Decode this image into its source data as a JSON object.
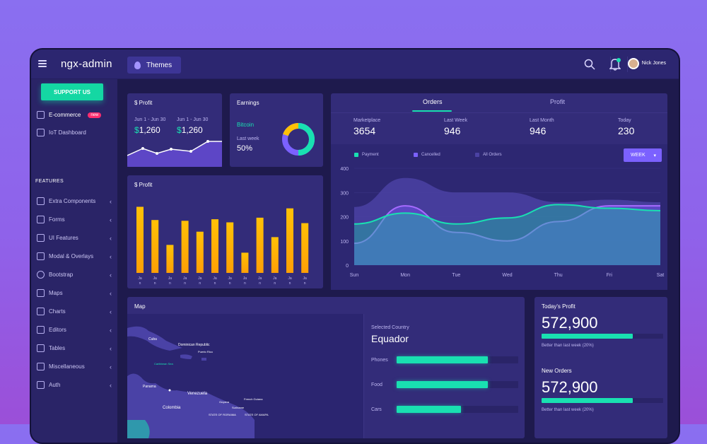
{
  "header": {
    "app_name": "ngx-admin",
    "themes_label": "Themes",
    "user_name": "Nick Jones",
    "icons": [
      "menu-icon",
      "drop-icon",
      "search-icon",
      "bell-icon"
    ]
  },
  "sidebar": {
    "support_label": "SUPPORT US",
    "features_label": "FEATURES",
    "new_badge": "new",
    "top_items": [
      {
        "label": "E-commerce",
        "icon": "shopping-cart-icon"
      },
      {
        "label": "IoT Dashboard",
        "icon": "home-icon"
      }
    ],
    "items": [
      {
        "label": "Extra Components",
        "icon": "star-icon"
      },
      {
        "label": "Forms",
        "icon": "edit-icon"
      },
      {
        "label": "UI Features",
        "icon": "grid-icon"
      },
      {
        "label": "Modal & Overlays",
        "icon": "browser-icon"
      },
      {
        "label": "Bootstrap",
        "icon": "gear-icon"
      },
      {
        "label": "Maps",
        "icon": "map-icon"
      },
      {
        "label": "Charts",
        "icon": "chart-icon"
      },
      {
        "label": "Editors",
        "icon": "text-icon"
      },
      {
        "label": "Tables",
        "icon": "table-icon"
      },
      {
        "label": "Miscellaneous",
        "icon": "shuffle-icon"
      },
      {
        "label": "Auth",
        "icon": "lock-icon"
      }
    ]
  },
  "profit_card": {
    "title": "$ Profit",
    "periods": [
      {
        "label": "Jun 1 - Jun 30",
        "currency": "$",
        "value": "1,260"
      },
      {
        "label": "Jun 1 - Jun 30",
        "currency": "$",
        "value": "1,260"
      }
    ]
  },
  "earnings_card": {
    "title": "Earnings",
    "coin": "Bitcoin",
    "last_week_label": "Last week",
    "percent": "50%"
  },
  "profit_bar_card": {
    "title": "$ Profit",
    "bar_values": [
      0.85,
      0.68,
      0.36,
      0.67,
      0.53,
      0.69,
      0.65,
      0.26,
      0.71,
      0.46,
      0.83,
      0.64
    ],
    "x_labels": [
      "Ja n",
      "Ja n",
      "Ja n",
      "Ja n",
      "Ja n",
      "Ja n",
      "Ja n",
      "Ja n",
      "Ja n",
      "Ja n",
      "Ja n",
      "Ja n"
    ]
  },
  "orders_card": {
    "tabs": [
      "Orders",
      "Profit"
    ],
    "stats": [
      {
        "label": "Marketplace",
        "value": "3654"
      },
      {
        "label": "Last Week",
        "value": "946"
      },
      {
        "label": "Last Month",
        "value": "946"
      },
      {
        "label": "Today",
        "value": "230"
      }
    ],
    "legend": [
      {
        "label": "Payment",
        "color": "#19e0b1"
      },
      {
        "label": "Cancelled",
        "color": "#7b61ff"
      },
      {
        "label": "All Orders",
        "color": "#4b42a3"
      }
    ],
    "week_button": "WEEK"
  },
  "map_card": {
    "title": "Map",
    "selected_country_label": "Selected Country",
    "selected_country": "Equador",
    "places": [
      "Cuba",
      "Dominican Republic",
      "Puerto Rico",
      "Caribbean Sea",
      "Panama",
      "Venezuela",
      "Colombia",
      "Guyana",
      "French Guiana",
      "Suriname",
      "STATE OF RORAIMA",
      "STATE OF AMAPA"
    ],
    "bars": [
      {
        "label": "Phones",
        "fraction": 0.75
      },
      {
        "label": "Food",
        "fraction": 0.75
      },
      {
        "label": "Cars",
        "fraction": 0.53
      }
    ]
  },
  "today_profit_card": {
    "title": "Today's Profit",
    "value": "572,900",
    "fraction": 0.75,
    "note": "Better than last week (20%)",
    "title2": "New Orders",
    "value2": "572,900",
    "fraction2": 0.75,
    "note2": "Better than last week (20%)"
  },
  "chart_data": {
    "type": "area",
    "categories": [
      "Sun",
      "Mon",
      "Tue",
      "Wed",
      "Thu",
      "Fri",
      "Sat"
    ],
    "ylim": [
      0,
      400
    ],
    "y_ticks": [
      0,
      100,
      200,
      300,
      400
    ],
    "series": [
      {
        "name": "All Orders",
        "values": [
          240,
          360,
          300,
          300,
          260,
          270,
          260
        ]
      },
      {
        "name": "Cancelled",
        "values": [
          90,
          245,
          135,
          100,
          180,
          245,
          245
        ]
      },
      {
        "name": "Payment",
        "values": [
          170,
          215,
          170,
          195,
          250,
          235,
          225
        ]
      }
    ]
  }
}
